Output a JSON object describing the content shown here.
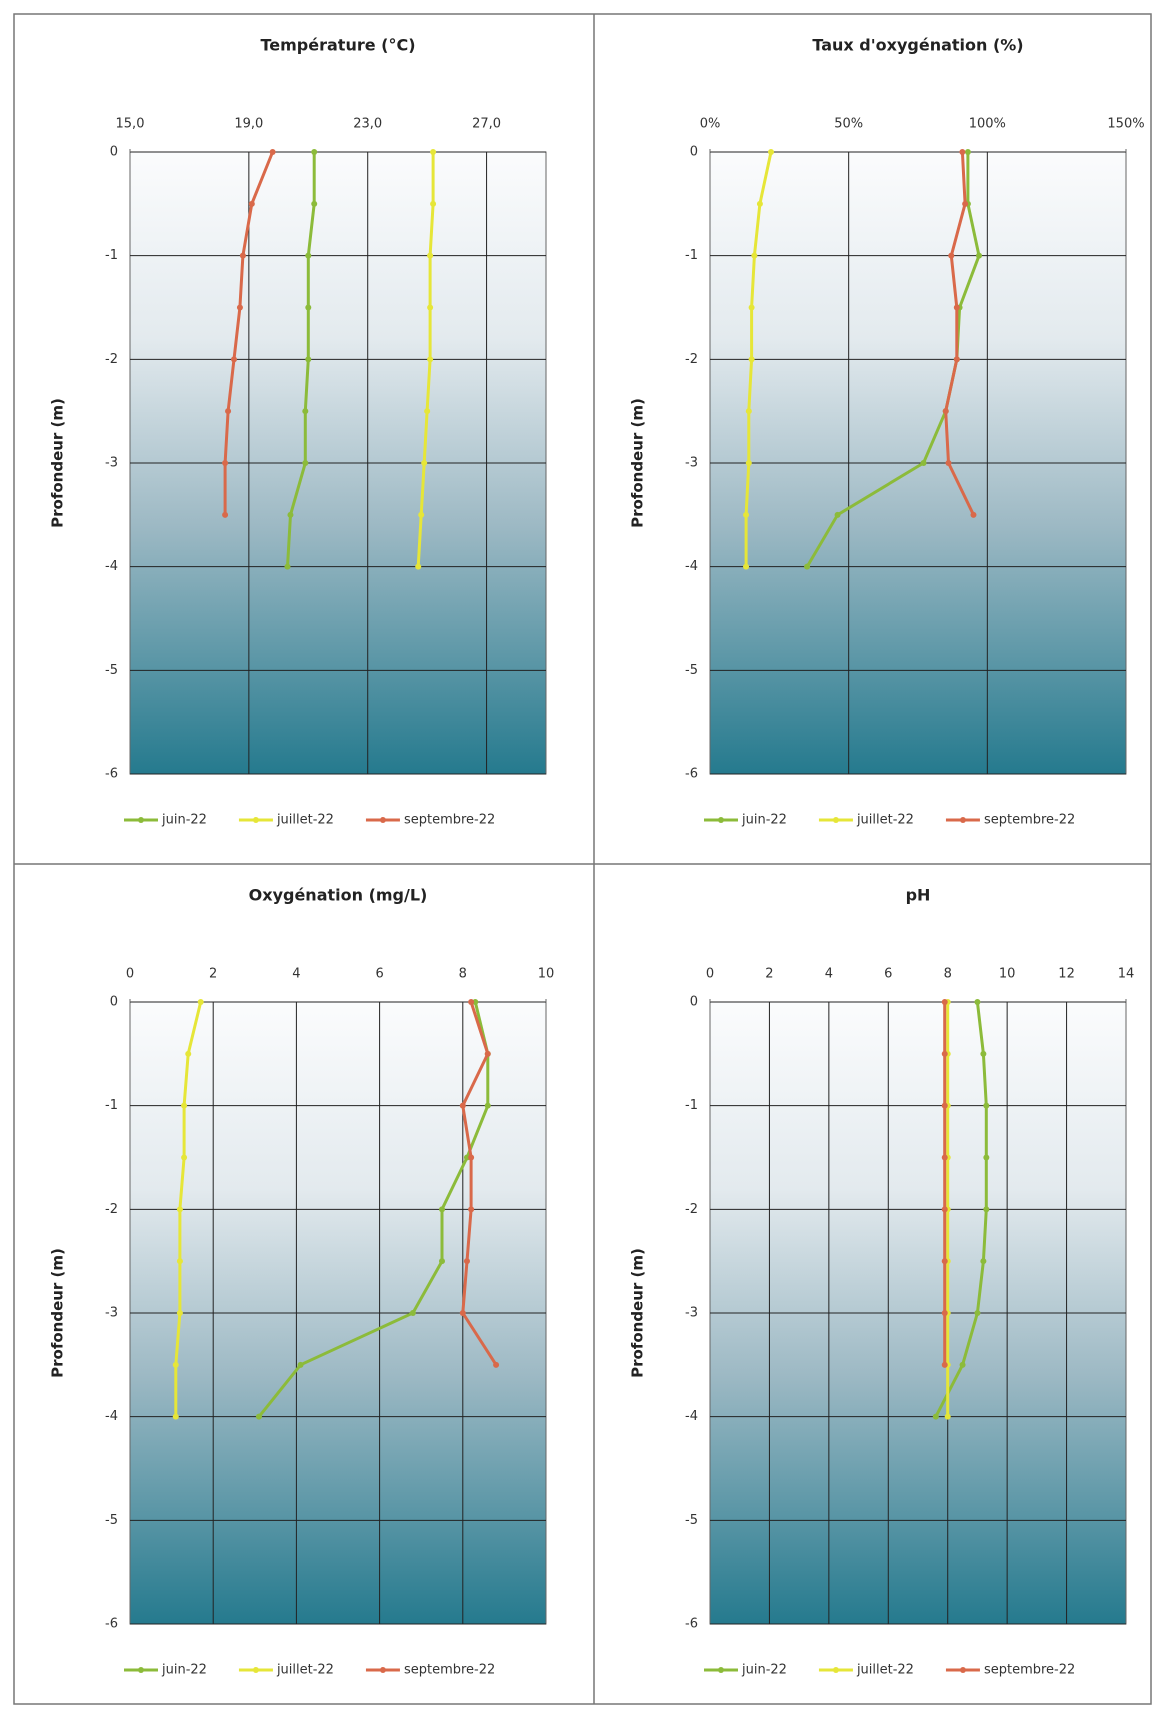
{
  "chart_data": [
    {
      "type": "line",
      "title": "Température (°C)",
      "y_label": "Profondeur (m)",
      "xlim": [
        15,
        29
      ],
      "xticks": [
        {
          "value": 15,
          "label": "15,0"
        },
        {
          "value": 19,
          "label": "19,0"
        },
        {
          "value": 23,
          "label": "23,0"
        },
        {
          "value": 27,
          "label": "27,0"
        }
      ],
      "ylim": [
        -6,
        0
      ],
      "yticks": [
        0,
        -1,
        -2,
        -3,
        -4,
        -5,
        -6
      ],
      "y": [
        0,
        -0.5,
        -1,
        -1.5,
        -2,
        -2.5,
        -3,
        -3.5,
        -4
      ],
      "series": [
        {
          "name": "juin-22",
          "color": "#8cbb3a",
          "values": [
            21.2,
            21.2,
            21.0,
            21.0,
            21.0,
            20.9,
            20.9,
            20.4,
            20.3
          ]
        },
        {
          "name": "juillet-22",
          "color": "#e6e638",
          "values": [
            25.2,
            25.2,
            25.1,
            25.1,
            25.1,
            25.0,
            24.9,
            24.8,
            24.7
          ]
        },
        {
          "name": "septembre-22",
          "color": "#d9694a",
          "values": [
            19.8,
            19.1,
            18.8,
            18.7,
            18.5,
            18.3,
            18.2,
            18.2,
            null
          ]
        }
      ]
    },
    {
      "type": "line",
      "title": "Taux d'oxygénation (%)",
      "y_label": "Profondeur (m)",
      "xlim": [
        0,
        150
      ],
      "xticks": [
        {
          "value": 0,
          "label": "0%"
        },
        {
          "value": 50,
          "label": "50%"
        },
        {
          "value": 100,
          "label": "100%"
        },
        {
          "value": 150,
          "label": "150%"
        }
      ],
      "ylim": [
        -6,
        0
      ],
      "yticks": [
        0,
        -1,
        -2,
        -3,
        -4,
        -5,
        -6
      ],
      "y": [
        0,
        -0.5,
        -1,
        -1.5,
        -2,
        -2.5,
        -3,
        -3.5,
        -4
      ],
      "series": [
        {
          "name": "juin-22",
          "color": "#8cbb3a",
          "values": [
            93,
            93,
            97,
            90,
            89,
            85,
            77,
            46,
            35
          ]
        },
        {
          "name": "juillet-22",
          "color": "#e6e638",
          "values": [
            22,
            18,
            16,
            15,
            15,
            14,
            14,
            13,
            13
          ]
        },
        {
          "name": "septembre-22",
          "color": "#d9694a",
          "values": [
            91,
            92,
            87,
            89,
            89,
            85,
            86,
            95,
            null
          ]
        }
      ]
    },
    {
      "type": "line",
      "title": "Oxygénation (mg/L)",
      "y_label": "Profondeur (m)",
      "xlim": [
        0,
        10
      ],
      "xticks": [
        0,
        2,
        4,
        6,
        8,
        10
      ],
      "ylim": [
        -6,
        0
      ],
      "yticks": [
        0,
        -1,
        -2,
        -3,
        -4,
        -5,
        -6
      ],
      "y": [
        0,
        -0.5,
        -1,
        -1.5,
        -2,
        -2.5,
        -3,
        -3.5,
        -4
      ],
      "series": [
        {
          "name": "juin-22",
          "color": "#8cbb3a",
          "values": [
            8.3,
            8.6,
            8.6,
            8.1,
            7.5,
            7.5,
            6.8,
            4.1,
            3.1
          ]
        },
        {
          "name": "juillet-22",
          "color": "#e6e638",
          "values": [
            1.7,
            1.4,
            1.3,
            1.3,
            1.2,
            1.2,
            1.2,
            1.1,
            1.1
          ]
        },
        {
          "name": "septembre-22",
          "color": "#d9694a",
          "values": [
            8.2,
            8.6,
            8.0,
            8.2,
            8.2,
            8.1,
            8.0,
            8.8,
            null
          ]
        }
      ]
    },
    {
      "type": "line",
      "title": "pH",
      "y_label": "Profondeur (m)",
      "xlim": [
        0,
        14
      ],
      "xticks": [
        0,
        2,
        4,
        6,
        8,
        10,
        12,
        14
      ],
      "ylim": [
        -6,
        0
      ],
      "yticks": [
        0,
        -1,
        -2,
        -3,
        -4,
        -5,
        -6
      ],
      "y": [
        0,
        -0.5,
        -1,
        -1.5,
        -2,
        -2.5,
        -3,
        -3.5,
        -4
      ],
      "series": [
        {
          "name": "juin-22",
          "color": "#8cbb3a",
          "values": [
            9.0,
            9.2,
            9.3,
            9.3,
            9.3,
            9.2,
            9.0,
            8.5,
            7.6
          ]
        },
        {
          "name": "juillet-22",
          "color": "#e6e638",
          "values": [
            8.0,
            8.0,
            8.0,
            8.0,
            8.0,
            8.0,
            8.0,
            8.0,
            8.0
          ]
        },
        {
          "name": "septembre-22",
          "color": "#d9694a",
          "values": [
            7.9,
            7.9,
            7.9,
            7.9,
            7.9,
            7.9,
            7.9,
            7.9,
            null
          ]
        }
      ]
    }
  ]
}
